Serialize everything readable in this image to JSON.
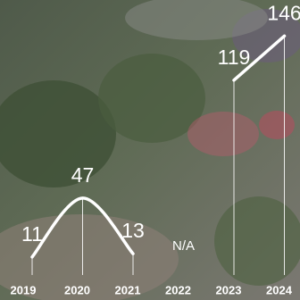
{
  "chart_data": {
    "type": "line",
    "categories": [
      "2019",
      "2020",
      "2021",
      "2022",
      "2023",
      "2024"
    ],
    "values": [
      11,
      47,
      13,
      null,
      119,
      146
    ],
    "value_labels": [
      "11",
      "47",
      "13",
      "N/A",
      "119",
      "146"
    ],
    "color": "#ffffff",
    "ylim": [
      0,
      150
    ]
  }
}
